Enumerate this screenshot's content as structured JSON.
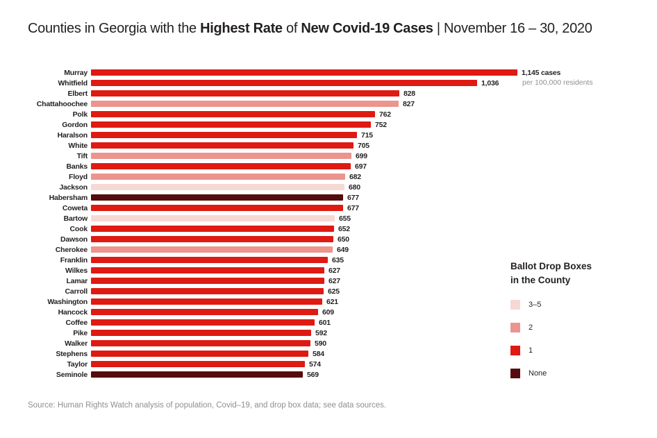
{
  "title": {
    "part1": "Counties in Georgia with the ",
    "bold1": "Highest Rate",
    "part2": " of ",
    "bold2": "New Covid-19 Cases",
    "part3": " | November 16 – 30, 2020"
  },
  "chart_data": {
    "type": "bar",
    "orientation": "horizontal",
    "title": "Counties in Georgia with the Highest Rate of New Covid-19 Cases | November 16 – 30, 2020",
    "unit_note": "per 100,000 residents",
    "max_value": 1145,
    "xlim": [
      0,
      1145
    ],
    "grid": false,
    "legend_position": "right",
    "rows": [
      {
        "county": "Murray",
        "value": 1145,
        "display": "1,145 cases",
        "drop_boxes": "1"
      },
      {
        "county": "Whitfield",
        "value": 1036,
        "display": "1,036",
        "drop_boxes": "1"
      },
      {
        "county": "Elbert",
        "value": 828,
        "display": "828",
        "drop_boxes": "1"
      },
      {
        "county": "Chattahoochee",
        "value": 827,
        "display": "827",
        "drop_boxes": "2"
      },
      {
        "county": "Polk",
        "value": 762,
        "display": "762",
        "drop_boxes": "1"
      },
      {
        "county": "Gordon",
        "value": 752,
        "display": "752",
        "drop_boxes": "1"
      },
      {
        "county": "Haralson",
        "value": 715,
        "display": "715",
        "drop_boxes": "1"
      },
      {
        "county": "White",
        "value": 705,
        "display": "705",
        "drop_boxes": "1"
      },
      {
        "county": "Tift",
        "value": 699,
        "display": "699",
        "drop_boxes": "2"
      },
      {
        "county": "Banks",
        "value": 697,
        "display": "697",
        "drop_boxes": "1"
      },
      {
        "county": "Floyd",
        "value": 682,
        "display": "682",
        "drop_boxes": "2"
      },
      {
        "county": "Jackson",
        "value": 680,
        "display": "680",
        "drop_boxes": "3-5"
      },
      {
        "county": "Habersham",
        "value": 677,
        "display": "677",
        "drop_boxes": "none"
      },
      {
        "county": "Coweta",
        "value": 677,
        "display": "677",
        "drop_boxes": "1"
      },
      {
        "county": "Bartow",
        "value": 655,
        "display": "655",
        "drop_boxes": "3-5"
      },
      {
        "county": "Cook",
        "value": 652,
        "display": "652",
        "drop_boxes": "1"
      },
      {
        "county": "Dawson",
        "value": 650,
        "display": "650",
        "drop_boxes": "1"
      },
      {
        "county": "Cherokee",
        "value": 649,
        "display": "649",
        "drop_boxes": "2"
      },
      {
        "county": "Franklin",
        "value": 635,
        "display": "635",
        "drop_boxes": "1"
      },
      {
        "county": "Wilkes",
        "value": 627,
        "display": "627",
        "drop_boxes": "1"
      },
      {
        "county": "Lamar",
        "value": 627,
        "display": "627",
        "drop_boxes": "1"
      },
      {
        "county": "Carroll",
        "value": 625,
        "display": "625",
        "drop_boxes": "1"
      },
      {
        "county": "Washington",
        "value": 621,
        "display": "621",
        "drop_boxes": "1"
      },
      {
        "county": "Hancock",
        "value": 609,
        "display": "609",
        "drop_boxes": "1"
      },
      {
        "county": "Coffee",
        "value": 601,
        "display": "601",
        "drop_boxes": "1"
      },
      {
        "county": "Pike",
        "value": 592,
        "display": "592",
        "drop_boxes": "1"
      },
      {
        "county": "Walker",
        "value": 590,
        "display": "590",
        "drop_boxes": "1"
      },
      {
        "county": "Stephens",
        "value": 584,
        "display": "584",
        "drop_boxes": "1"
      },
      {
        "county": "Taylor",
        "value": 574,
        "display": "574",
        "drop_boxes": "1"
      },
      {
        "county": "Seminole",
        "value": 569,
        "display": "569",
        "drop_boxes": "none"
      }
    ],
    "legend": {
      "title_line1": "Ballot Drop Boxes",
      "title_line2": "in the County",
      "items": [
        {
          "label": "3–5",
          "key": "3-5",
          "color": "#f7d8d4"
        },
        {
          "label": "2",
          "key": "2",
          "color": "#ec948e"
        },
        {
          "label": "1",
          "key": "1",
          "color": "#de1a12"
        },
        {
          "label": "None",
          "key": "none",
          "color": "#560b0e"
        }
      ]
    }
  },
  "source": "Source: Human Rights Watch analysis of population, Covid–19, and drop box data; see data sources."
}
